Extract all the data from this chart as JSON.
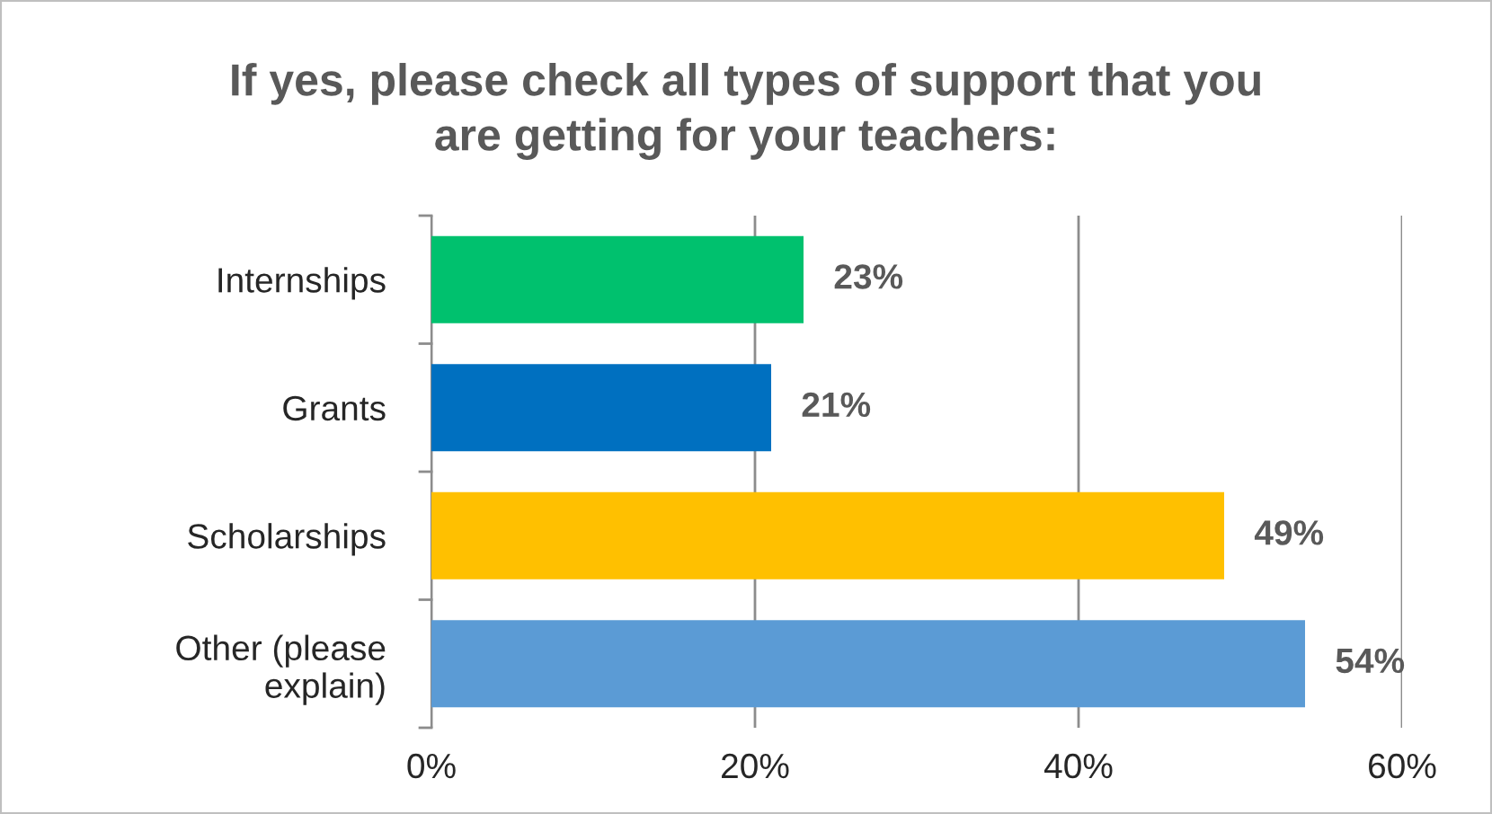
{
  "chart_data": {
    "type": "bar",
    "orientation": "horizontal",
    "title": "If yes, please check all types of support that you\nare getting for your teachers:",
    "categories": [
      "Internships",
      "Grants",
      "Scholarships",
      "Other (please\nexplain)"
    ],
    "values": [
      23,
      21,
      49,
      54
    ],
    "colors": [
      "#00c16e",
      "#0070c0",
      "#ffc000",
      "#5b9bd5"
    ],
    "value_labels": [
      "23%",
      "21%",
      "49%",
      "54%"
    ],
    "xlim": [
      0,
      60
    ],
    "xticks": [
      {
        "value": 0,
        "label": "0%"
      },
      {
        "value": 20,
        "label": "20%"
      },
      {
        "value": 40,
        "label": "40%"
      },
      {
        "value": 60,
        "label": "60%"
      }
    ],
    "grid": "x",
    "legend": false
  }
}
